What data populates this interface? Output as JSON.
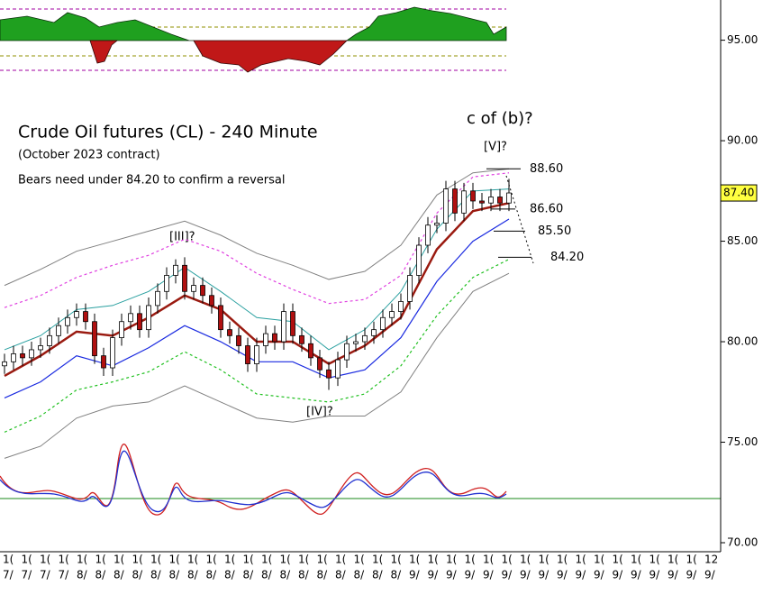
{
  "chart_data": {
    "type": "candlestick",
    "title": "Crude Oil futures (CL) - 240 Minute",
    "subtitle": "(October 2023 contract)",
    "note": "Bears need under 84.20 to confirm a reversal",
    "wave_labels": [
      "c of (b)?",
      "[V]?",
      "[III]?",
      "[IV]?"
    ],
    "levels": [
      {
        "value": 88.6,
        "label": "88.60"
      },
      {
        "value": 86.6,
        "label": "86.60"
      },
      {
        "value": 85.5,
        "label": "85.50"
      },
      {
        "value": 84.2,
        "label": "84.20"
      }
    ],
    "last_price": {
      "value": 87.4,
      "label": "87.40"
    },
    "ylim": [
      70,
      97
    ],
    "yticks": [
      {
        "value": 70,
        "label": "70.00"
      },
      {
        "value": 75,
        "label": "75.00"
      },
      {
        "value": 80,
        "label": "80.00"
      },
      {
        "value": 85,
        "label": "85.00"
      },
      {
        "value": 90,
        "label": "90.00"
      },
      {
        "value": 95,
        "label": "95.00"
      }
    ],
    "x_labels_top": [
      "1(",
      "1(",
      "1(",
      "1(",
      "1(",
      "1(",
      "1(",
      "1(",
      "1(",
      "1(",
      "1(",
      "1(",
      "1(",
      "1(",
      "1(",
      "1(",
      "1(",
      "1(",
      "1(",
      "1(",
      "1(",
      "1(",
      "1(",
      "1(",
      "1(",
      "1(",
      "1(",
      "1(",
      "1(",
      "1(",
      "1(",
      "1(",
      "1(",
      "1(",
      "1(",
      "1(",
      "1(",
      "1(",
      "12"
    ],
    "x_labels": [
      "7/",
      "7/",
      "7/",
      "7/",
      "8/",
      "8/",
      "8/",
      "8/",
      "8/",
      "8/",
      "8/",
      "8/",
      "8/",
      "8/",
      "8/",
      "8/",
      "8/",
      "8/",
      "8/",
      "8/",
      "8/",
      "8/",
      "9/",
      "9/",
      "9/",
      "9/",
      "9/",
      "9/",
      "9/",
      "9/",
      "9/",
      "9/",
      "9/",
      "9/",
      "9/",
      "9/",
      "9/",
      "9/",
      "9/"
    ],
    "open": [
      78.8,
      79.0,
      79.4,
      79.2,
      79.6,
      79.8,
      80.3,
      80.8,
      81.2,
      81.5,
      81.0,
      79.3,
      78.7,
      80.2,
      81.0,
      81.4,
      80.6,
      81.8,
      82.5,
      83.3,
      83.8,
      82.5,
      82.8,
      82.3,
      81.8,
      80.6,
      80.3,
      79.8,
      78.9,
      79.8,
      80.4,
      80.0,
      81.5,
      80.3,
      79.9,
      79.2,
      78.6,
      78.2,
      79.1,
      79.9,
      80.0,
      80.3,
      80.6,
      81.2,
      81.5,
      82.0,
      83.3,
      84.8,
      85.8,
      85.9,
      87.6,
      86.4,
      87.5,
      87.0,
      86.9,
      87.2,
      86.9
    ],
    "high": [
      79.4,
      79.8,
      79.8,
      80.0,
      80.2,
      80.7,
      81.2,
      81.6,
      81.9,
      81.9,
      81.4,
      79.7,
      80.6,
      81.4,
      81.8,
      81.8,
      82.2,
      82.9,
      83.7,
      84.1,
      84.2,
      83.2,
      83.2,
      82.7,
      82.2,
      81.0,
      80.7,
      80.2,
      80.2,
      80.8,
      80.8,
      81.9,
      81.9,
      80.7,
      80.3,
      79.6,
      79.0,
      79.5,
      80.3,
      80.4,
      80.7,
      81.0,
      81.6,
      81.9,
      82.4,
      83.7,
      85.2,
      86.2,
      86.3,
      88.0,
      88.0,
      87.9,
      87.9,
      87.4,
      87.6,
      87.6,
      88.1
    ],
    "low": [
      78.4,
      78.6,
      78.8,
      78.8,
      79.2,
      79.4,
      79.9,
      80.4,
      80.8,
      80.6,
      78.9,
      78.3,
      78.3,
      79.8,
      80.6,
      80.2,
      80.2,
      81.4,
      82.1,
      82.9,
      82.1,
      82.1,
      81.9,
      81.4,
      80.2,
      79.9,
      79.4,
      78.5,
      78.5,
      79.4,
      79.6,
      79.6,
      79.9,
      79.5,
      78.8,
      78.2,
      77.6,
      77.8,
      78.7,
      79.5,
      79.6,
      79.9,
      80.2,
      80.8,
      81.1,
      81.6,
      82.9,
      84.4,
      85.4,
      85.5,
      86.0,
      86.0,
      86.6,
      86.5,
      86.5,
      86.5,
      86.5
    ],
    "close": [
      79.0,
      79.4,
      79.2,
      79.6,
      79.8,
      80.3,
      80.8,
      81.2,
      81.5,
      81.0,
      79.3,
      78.7,
      80.2,
      81.0,
      81.4,
      80.6,
      81.8,
      82.5,
      83.3,
      83.8,
      82.5,
      82.8,
      82.3,
      81.8,
      80.6,
      80.3,
      79.8,
      78.9,
      79.8,
      80.4,
      80.0,
      81.5,
      80.3,
      79.9,
      79.2,
      78.6,
      78.2,
      79.1,
      79.9,
      80.0,
      80.3,
      80.6,
      81.2,
      81.5,
      82.0,
      83.3,
      84.8,
      85.8,
      85.9,
      87.6,
      86.4,
      87.5,
      87.0,
      86.9,
      87.2,
      86.9,
      87.4
    ],
    "up_color": "#ffffff",
    "down_color": "#b01010",
    "bands": [
      {
        "color": "#808080",
        "width": 1,
        "dash": false,
        "values": [
          82.8,
          83.6,
          84.5,
          85.0,
          85.5,
          86.0,
          85.3,
          84.4,
          83.8,
          83.1,
          83.5,
          84.8,
          87.3,
          88.4,
          88.6
        ]
      },
      {
        "color": "#e040e0",
        "width": 1.2,
        "dash": true,
        "values": [
          81.7,
          82.3,
          83.2,
          83.8,
          84.3,
          85.1,
          84.5,
          83.4,
          82.6,
          81.9,
          82.1,
          83.3,
          86.4,
          88.2,
          88.4
        ]
      },
      {
        "color": "#2aa0a0",
        "width": 1,
        "dash": false,
        "values": [
          79.6,
          80.3,
          81.6,
          81.8,
          82.5,
          83.7,
          82.5,
          81.2,
          81.0,
          79.6,
          80.6,
          82.5,
          85.6,
          87.5,
          87.6
        ]
      },
      {
        "color": "#9a1a10",
        "width": 2.5,
        "dash": false,
        "values": [
          78.3,
          79.3,
          80.5,
          80.3,
          81.2,
          82.3,
          81.6,
          80.0,
          80.0,
          78.9,
          79.8,
          81.2,
          84.6,
          86.5,
          86.9
        ]
      },
      {
        "color": "#1a2ae0",
        "width": 1.2,
        "dash": false,
        "values": [
          77.2,
          78.0,
          79.3,
          78.8,
          79.7,
          80.8,
          80.0,
          79.0,
          79.0,
          78.2,
          78.6,
          80.2,
          83.0,
          85.0,
          86.1
        ]
      },
      {
        "color": "#20c020",
        "width": 1.2,
        "dash": true,
        "values": [
          75.5,
          76.3,
          77.6,
          78.0,
          78.5,
          79.5,
          78.6,
          77.4,
          77.2,
          77.0,
          77.4,
          78.8,
          81.3,
          83.2,
          84.1
        ]
      },
      {
        "color": "#808080",
        "width": 1,
        "dash": false,
        "values": [
          74.2,
          74.8,
          76.2,
          76.8,
          77.0,
          77.8,
          77.0,
          76.2,
          76.0,
          76.3,
          76.3,
          77.5,
          80.2,
          82.5,
          83.4
        ]
      }
    ]
  }
}
